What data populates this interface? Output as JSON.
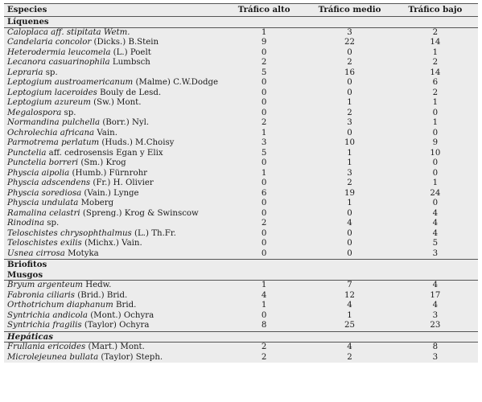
{
  "headers": [
    "Especies",
    "Tráfico alto",
    "Tráfico medio",
    "Tráfico bajo"
  ],
  "groups": [
    {
      "title": "Líquenes",
      "style": "bold",
      "ruleTop": false,
      "ruleBottom": true,
      "rows": [
        {
          "sp": "Caloplaca",
          "au": " aff. stipitata Wetm.",
          "auItalic": true,
          "v": [
            "1",
            "3",
            "2"
          ]
        },
        {
          "sp": "Candelaria concolor",
          "au": " (Dicks.) B.Stein",
          "v": [
            "9",
            "22",
            "14"
          ]
        },
        {
          "sp": "Heterodermia leucomela",
          "au": " (L.) Poelt",
          "v": [
            "0",
            "0",
            "1"
          ]
        },
        {
          "sp": "Lecanora casuarinophila",
          "au": " Lumbsch",
          "v": [
            "2",
            "2",
            "2"
          ]
        },
        {
          "sp": "Lepraria",
          "au": " sp.",
          "v": [
            "5",
            "16",
            "14"
          ]
        },
        {
          "sp": "Leptogium austroamericanum",
          "au": " (Malme) C.W.Dodge",
          "v": [
            "0",
            "0",
            "6"
          ]
        },
        {
          "sp": "Leptogium laceroides",
          "au": " Bouly de Lesd.",
          "v": [
            "0",
            "0",
            "2"
          ]
        },
        {
          "sp": "Leptogium azureum",
          "au": " (Sw.) Mont.",
          "v": [
            "0",
            "1",
            "1"
          ]
        },
        {
          "sp": "Megalospora",
          "au": " sp.",
          "v": [
            "0",
            "2",
            "0"
          ]
        },
        {
          "sp": "Normandina pulchella",
          "au": " (Borr.) Nyl.",
          "v": [
            "2",
            "3",
            "1"
          ]
        },
        {
          "sp": "Ochrolechia africana",
          "au": " Vain.",
          "v": [
            "1",
            "0",
            "0"
          ]
        },
        {
          "sp": "Parmotrema perlatum",
          "au": " (Huds.) M.Choisy",
          "v": [
            "3",
            "10",
            "9"
          ]
        },
        {
          "sp": "Punctelia",
          "au": " aff. cedrosensis Egan y Elix",
          "v": [
            "5",
            "1",
            "10"
          ]
        },
        {
          "sp": "Punctelia borreri",
          "au": " (Sm.) Krog",
          "v": [
            "0",
            "1",
            "0"
          ]
        },
        {
          "sp": "Physcia aipolia",
          "au": " (Humb.) Fürnrohr",
          "v": [
            "1",
            "3",
            "0"
          ]
        },
        {
          "sp": "Physcia adscendens",
          "au": " (Fr.) H. Olivier",
          "v": [
            "0",
            "2",
            "1"
          ]
        },
        {
          "sp": "Physcia sorediosa",
          "au": " (Vain.) Lynge",
          "v": [
            "6",
            "19",
            "24"
          ]
        },
        {
          "sp": "Physcia undulata",
          "au": " Moberg",
          "v": [
            "0",
            "1",
            "0"
          ]
        },
        {
          "sp": "Ramalina celastri",
          "au": " (Spreng.) Krog & Swinscow",
          "v": [
            "0",
            "0",
            "4"
          ]
        },
        {
          "sp": "Rinodina",
          "au": " sp.",
          "v": [
            "2",
            "4",
            "4"
          ]
        },
        {
          "sp": "Teloschistes chrysophthalmus",
          "au": " (L.) Th.Fr.",
          "v": [
            "0",
            "0",
            "4"
          ]
        },
        {
          "sp": "Teloschistes exilis",
          "au": " (Michx.) Vain.",
          "v": [
            "0",
            "0",
            "5"
          ]
        },
        {
          "sp": "Usnea cirrosa",
          "au": " Motyka",
          "v": [
            "0",
            "0",
            "3"
          ]
        }
      ]
    },
    {
      "title": "Briofitos",
      "style": "bold",
      "ruleTop": true,
      "ruleBottom": false,
      "rows": []
    },
    {
      "title": "Musgos",
      "style": "bold",
      "ruleTop": false,
      "ruleBottom": true,
      "rows": [
        {
          "sp": "Bryum argenteum",
          "au": " Hedw.",
          "v": [
            "1",
            "7",
            "4"
          ]
        },
        {
          "sp": "Fabronia ciliaris",
          "au": " (Brid.) Brid.",
          "v": [
            "4",
            "12",
            "17"
          ]
        },
        {
          "sp": "Orthotrichum diaphanum",
          "au": " Brid.",
          "v": [
            "1",
            "4",
            "4"
          ]
        },
        {
          "sp": "Syntrichia andicola",
          "au": " (Mont.) Ochyra",
          "v": [
            "0",
            "1",
            "3"
          ]
        },
        {
          "sp": "Syntrichia fragilis",
          "au": " (Taylor) Ochyra",
          "v": [
            "8",
            "25",
            "23"
          ]
        }
      ]
    },
    {
      "title": "Hepáticas",
      "style": "bolditalic",
      "ruleTop": true,
      "ruleBottom": true,
      "rows": [
        {
          "sp": "Frullania ericoides",
          "au": " (Mart.) Mont.",
          "v": [
            "2",
            "4",
            "8"
          ]
        },
        {
          "sp": "Microlejeunea bullata",
          "au": " (Taylor) Steph.",
          "v": [
            "2",
            "2",
            "3"
          ]
        }
      ]
    }
  ]
}
